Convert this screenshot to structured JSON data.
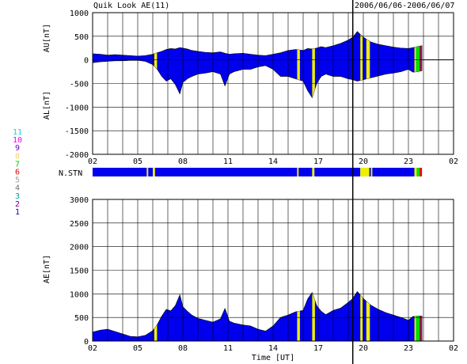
{
  "header": {
    "title": "Quik Look AE(11)",
    "date_range": "2006/06/06-2006/06/07"
  },
  "colors": {
    "fill": "#0000ee",
    "yellow": "#eeee00",
    "green": "#00dd00",
    "red": "#ee0000",
    "grid": "#000000"
  },
  "station_legend": [
    {
      "label": "11",
      "color": "#00e0e0"
    },
    {
      "label": "10",
      "color": "#ee00ee"
    },
    {
      "label": "9",
      "color": "#7000c0"
    },
    {
      "label": "8",
      "color": "#ffd070"
    },
    {
      "label": "7",
      "color": "#00d000"
    },
    {
      "label": "6",
      "color": "#ee0000"
    },
    {
      "label": "5",
      "color": "#a0a0a0"
    },
    {
      "label": "4",
      "color": "#707070"
    },
    {
      "label": "3",
      "color": "#00a0a0"
    },
    {
      "label": "2",
      "color": "#800080"
    },
    {
      "label": "1",
      "color": "#0000c0"
    }
  ],
  "chart_data": [
    {
      "id": "au_al",
      "type": "area",
      "ylabel_top": "AU[nT]",
      "ylabel_bottom": "AL[nT]",
      "ylim": [
        -2000,
        1000
      ],
      "yticks": [
        1000,
        500,
        0,
        -500,
        -1000,
        -1500,
        -2000
      ],
      "xlim": [
        2,
        26
      ],
      "xtick_labels": [
        "02",
        "05",
        "08",
        "11",
        "14",
        "17",
        "20",
        "23",
        "02"
      ],
      "x": [
        2,
        2.5,
        3,
        3.5,
        4,
        4.5,
        5,
        5.5,
        6,
        6.3,
        6.6,
        6.9,
        7.2,
        7.5,
        7.8,
        8.0,
        8.3,
        8.6,
        9,
        9.5,
        10,
        10.5,
        10.8,
        11.1,
        11.4,
        12,
        12.5,
        13,
        13.5,
        14,
        14.5,
        15,
        15.5,
        16,
        16.3,
        16.6,
        16.9,
        17.2,
        17.5,
        18,
        18.5,
        19,
        19.3,
        19.6,
        20,
        20.5,
        21,
        21.5,
        22,
        22.5,
        23,
        23.3,
        23.6,
        23.9
      ],
      "au": [
        130,
        120,
        100,
        110,
        100,
        90,
        80,
        90,
        120,
        150,
        180,
        220,
        240,
        230,
        260,
        250,
        230,
        200,
        180,
        160,
        150,
        170,
        140,
        120,
        130,
        140,
        120,
        100,
        90,
        120,
        150,
        200,
        220,
        200,
        240,
        230,
        250,
        280,
        260,
        300,
        350,
        420,
        480,
        600,
        480,
        380,
        330,
        300,
        270,
        250,
        240,
        260,
        280,
        300
      ],
      "al": [
        -60,
        -40,
        -30,
        -20,
        -20,
        -10,
        -10,
        -30,
        -100,
        -200,
        -350,
        -450,
        -400,
        -520,
        -720,
        -480,
        -400,
        -350,
        -300,
        -280,
        -250,
        -300,
        -550,
        -300,
        -250,
        -200,
        -200,
        -150,
        -120,
        -200,
        -350,
        -350,
        -400,
        -450,
        -650,
        -800,
        -500,
        -350,
        -300,
        -350,
        -350,
        -400,
        -420,
        -450,
        -420,
        -380,
        -340,
        -300,
        -280,
        -250,
        -200,
        -260,
        -250,
        -230
      ]
    },
    {
      "id": "ae",
      "type": "area",
      "ylabel": "AE[nT]",
      "xlabel": "Time [UT]",
      "ylim": [
        0,
        3000
      ],
      "yticks": [
        3000,
        2500,
        2000,
        1500,
        1000,
        500,
        0
      ],
      "xlim": [
        2,
        26
      ],
      "xtick_labels": [
        "02",
        "05",
        "08",
        "11",
        "14",
        "17",
        "20",
        "23",
        "02"
      ],
      "x": [
        2,
        2.5,
        3,
        3.5,
        4,
        4.5,
        5,
        5.5,
        6,
        6.3,
        6.6,
        6.9,
        7.2,
        7.5,
        7.8,
        8.0,
        8.3,
        8.6,
        9,
        9.5,
        10,
        10.5,
        10.8,
        11.1,
        11.4,
        12,
        12.5,
        13,
        13.5,
        14,
        14.5,
        15,
        15.5,
        16,
        16.3,
        16.6,
        16.9,
        17.2,
        17.5,
        18,
        18.5,
        19,
        19.3,
        19.6,
        20,
        20.5,
        21,
        21.5,
        22,
        22.5,
        23,
        23.3,
        23.6,
        23.9
      ],
      "values": [
        190,
        230,
        250,
        200,
        150,
        100,
        90,
        120,
        220,
        350,
        530,
        670,
        640,
        750,
        980,
        730,
        630,
        550,
        480,
        440,
        400,
        470,
        690,
        420,
        380,
        340,
        320,
        250,
        210,
        320,
        500,
        550,
        620,
        650,
        890,
        1030,
        750,
        630,
        560,
        650,
        700,
        820,
        900,
        1050,
        900,
        760,
        670,
        600,
        550,
        500,
        440,
        520,
        530,
        530
      ]
    }
  ],
  "yellow_bands_x": [
    6.1,
    15.6,
    16.6,
    19.8,
    20.2,
    23.4
  ],
  "green_bands_x": [
    23.5,
    23.6
  ],
  "red_band_x": 23.8,
  "data_end_x": 23.9,
  "cursor_x": 19.3,
  "nstn_label": "N.STN",
  "nstn_segments": [
    {
      "from": 2,
      "to": 5.6,
      "color": "blue"
    },
    {
      "from": 5.6,
      "to": 5.7,
      "color": "yellow"
    },
    {
      "from": 5.7,
      "to": 6.0,
      "color": "blue"
    },
    {
      "from": 6.0,
      "to": 6.15,
      "color": "yellow"
    },
    {
      "from": 6.15,
      "to": 15.6,
      "color": "blue"
    },
    {
      "from": 15.6,
      "to": 15.7,
      "color": "yellow"
    },
    {
      "from": 15.7,
      "to": 16.6,
      "color": "blue"
    },
    {
      "from": 16.6,
      "to": 16.75,
      "color": "yellow"
    },
    {
      "from": 16.75,
      "to": 19.8,
      "color": "blue"
    },
    {
      "from": 19.8,
      "to": 20.4,
      "color": "yellow"
    },
    {
      "from": 20.4,
      "to": 20.5,
      "color": "blue"
    },
    {
      "from": 20.5,
      "to": 20.6,
      "color": "yellow"
    },
    {
      "from": 20.6,
      "to": 23.4,
      "color": "blue"
    },
    {
      "from": 23.4,
      "to": 23.55,
      "color": "yellow"
    },
    {
      "from": 23.55,
      "to": 23.75,
      "color": "green"
    },
    {
      "from": 23.75,
      "to": 23.9,
      "color": "red"
    }
  ]
}
